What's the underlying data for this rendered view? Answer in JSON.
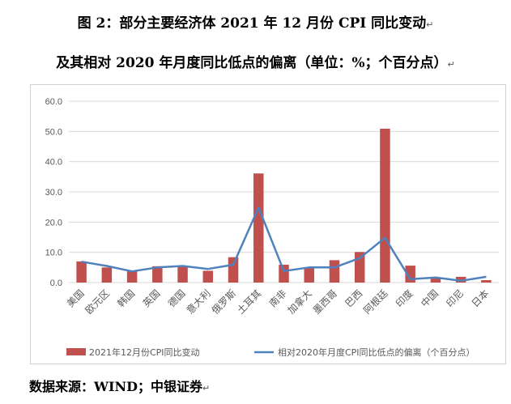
{
  "figure": {
    "title_line1": "图 2：部分主要经济体 2021 年 12 月份 CPI 同比变动",
    "title_line2": "及其相对 2020 年月度同比低点的偏离（单位：%；个百分点）",
    "paragraph_mark": "↵",
    "source": "数据来源：WIND；中银证券"
  },
  "chart_data": {
    "type": "bar",
    "categories": [
      "美国",
      "欧元区",
      "韩国",
      "英国",
      "德国",
      "意大利",
      "俄罗斯",
      "土耳其",
      "南非",
      "加拿大",
      "墨西哥",
      "巴西",
      "阿根廷",
      "印度",
      "中国",
      "印尼",
      "日本"
    ],
    "series": [
      {
        "name": "2021年12月份CPI同比变动",
        "kind": "bar",
        "color": "#c0504d",
        "values": [
          7.0,
          5.0,
          3.7,
          5.4,
          5.3,
          3.9,
          8.4,
          36.1,
          5.9,
          4.8,
          7.4,
          10.1,
          50.9,
          5.6,
          1.5,
          1.9,
          0.8
        ]
      },
      {
        "name": "相对2020年月度CPI同比低点的偏离（个百分点）",
        "kind": "line",
        "color": "#4f81bd",
        "values": [
          6.9,
          5.5,
          3.7,
          5.0,
          5.5,
          4.5,
          5.9,
          24.8,
          3.8,
          5.0,
          5.0,
          8.1,
          14.8,
          1.1,
          1.7,
          0.6,
          1.9
        ]
      }
    ],
    "ylim": [
      0,
      60
    ],
    "yticks": [
      "0.0",
      "10.0",
      "20.0",
      "30.0",
      "40.0",
      "50.0",
      "60.0"
    ],
    "grid": true,
    "legend_position": "bottom"
  }
}
